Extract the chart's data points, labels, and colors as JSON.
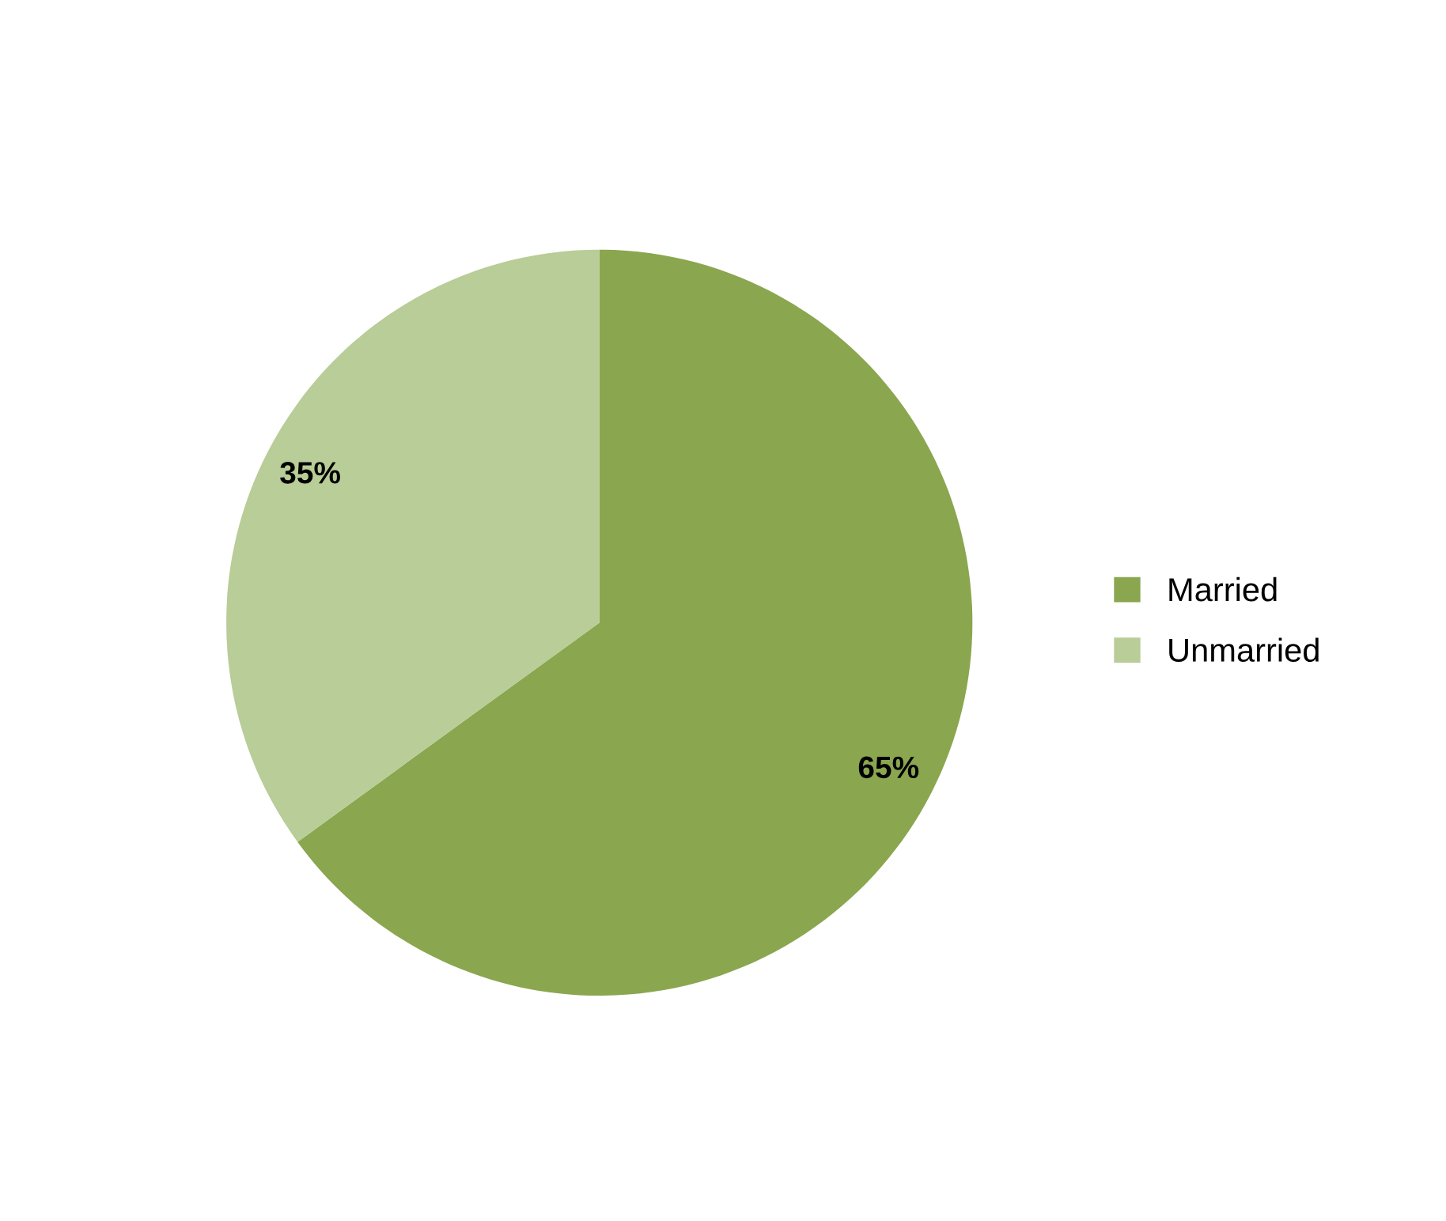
{
  "chart_data": {
    "type": "pie",
    "categories": [
      "Married",
      "Unmarried"
    ],
    "values": [
      65,
      35
    ],
    "colors": [
      "#8aa64f",
      "#b8cd97"
    ],
    "value_labels": [
      "65%",
      "35%"
    ],
    "legend": "right"
  }
}
